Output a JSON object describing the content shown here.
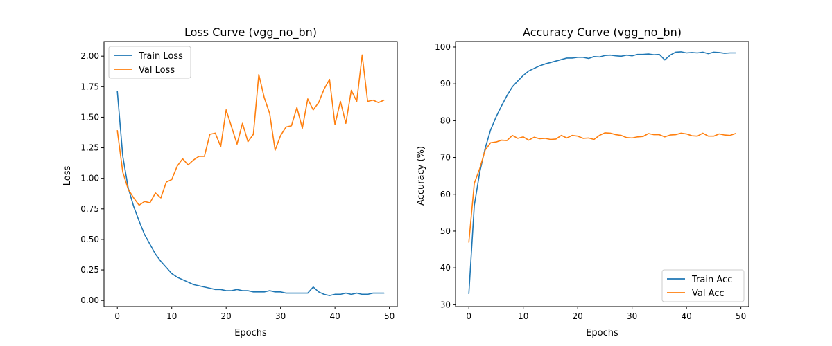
{
  "chart_data": [
    {
      "type": "line",
      "title": "Loss Curve (vgg_no_bn)",
      "xlabel": "Epochs",
      "ylabel": "Loss",
      "xlim": [
        -2.45,
        51.45
      ],
      "ylim": [
        -0.05,
        2.12
      ],
      "xticks": [
        0,
        10,
        20,
        30,
        40,
        50
      ],
      "yticks": [
        0.0,
        0.25,
        0.5,
        0.75,
        1.0,
        1.25,
        1.5,
        1.75,
        2.0
      ],
      "xtick_labels": [
        "0",
        "10",
        "20",
        "30",
        "40",
        "50"
      ],
      "ytick_labels": [
        "0.00",
        "0.25",
        "0.50",
        "0.75",
        "1.00",
        "1.25",
        "1.50",
        "1.75",
        "2.00"
      ],
      "legend_position": "upper-left",
      "x": [
        0,
        1,
        2,
        3,
        4,
        5,
        6,
        7,
        8,
        9,
        10,
        11,
        12,
        13,
        14,
        15,
        16,
        17,
        18,
        19,
        20,
        21,
        22,
        23,
        24,
        25,
        26,
        27,
        28,
        29,
        30,
        31,
        32,
        33,
        34,
        35,
        36,
        37,
        38,
        39,
        40,
        41,
        42,
        43,
        44,
        45,
        46,
        47,
        48,
        49
      ],
      "series": [
        {
          "name": "Train Loss",
          "color": "#1f77b4",
          "values": [
            1.71,
            1.18,
            0.92,
            0.77,
            0.65,
            0.54,
            0.46,
            0.38,
            0.32,
            0.27,
            0.22,
            0.19,
            0.17,
            0.15,
            0.13,
            0.12,
            0.11,
            0.1,
            0.09,
            0.09,
            0.08,
            0.08,
            0.09,
            0.08,
            0.08,
            0.07,
            0.07,
            0.07,
            0.08,
            0.07,
            0.07,
            0.06,
            0.06,
            0.06,
            0.06,
            0.06,
            0.11,
            0.07,
            0.05,
            0.04,
            0.05,
            0.05,
            0.06,
            0.05,
            0.06,
            0.05,
            0.05,
            0.06,
            0.06,
            0.06
          ]
        },
        {
          "name": "Val Loss",
          "color": "#ff7f0e",
          "values": [
            1.39,
            1.05,
            0.91,
            0.84,
            0.78,
            0.81,
            0.8,
            0.88,
            0.84,
            0.97,
            0.99,
            1.1,
            1.16,
            1.11,
            1.15,
            1.18,
            1.18,
            1.36,
            1.37,
            1.26,
            1.56,
            1.42,
            1.28,
            1.45,
            1.3,
            1.36,
            1.85,
            1.66,
            1.53,
            1.23,
            1.35,
            1.42,
            1.43,
            1.58,
            1.41,
            1.65,
            1.56,
            1.62,
            1.73,
            1.81,
            1.44,
            1.63,
            1.45,
            1.72,
            1.63,
            2.01,
            1.63,
            1.64,
            1.62,
            1.64
          ]
        }
      ]
    },
    {
      "type": "line",
      "title": "Accuracy Curve (vgg_no_bn)",
      "xlabel": "Epochs",
      "ylabel": "Accuracy (%)",
      "xlim": [
        -2.45,
        51.45
      ],
      "ylim": [
        29.5,
        101.5
      ],
      "xticks": [
        0,
        10,
        20,
        30,
        40,
        50
      ],
      "yticks": [
        30,
        40,
        50,
        60,
        70,
        80,
        90,
        100
      ],
      "xtick_labels": [
        "0",
        "10",
        "20",
        "30",
        "40",
        "50"
      ],
      "ytick_labels": [
        "30",
        "40",
        "50",
        "60",
        "70",
        "80",
        "90",
        "100"
      ],
      "legend_position": "lower-right",
      "x": [
        0,
        1,
        2,
        3,
        4,
        5,
        6,
        7,
        8,
        9,
        10,
        11,
        12,
        13,
        14,
        15,
        16,
        17,
        18,
        19,
        20,
        21,
        22,
        23,
        24,
        25,
        26,
        27,
        28,
        29,
        30,
        31,
        32,
        33,
        34,
        35,
        36,
        37,
        38,
        39,
        40,
        41,
        42,
        43,
        44,
        45,
        46,
        47,
        48,
        49
      ],
      "series": [
        {
          "name": "Train Acc",
          "color": "#1f77b4",
          "values": [
            33.0,
            57.0,
            66.0,
            72.5,
            77.5,
            81.0,
            84.0,
            86.8,
            89.2,
            90.8,
            92.3,
            93.5,
            94.2,
            94.9,
            95.4,
            95.8,
            96.2,
            96.6,
            97.0,
            97.0,
            97.2,
            97.2,
            96.9,
            97.4,
            97.3,
            97.7,
            97.8,
            97.6,
            97.5,
            97.8,
            97.6,
            98.0,
            98.0,
            98.1,
            97.9,
            98.0,
            96.5,
            97.8,
            98.6,
            98.7,
            98.4,
            98.5,
            98.4,
            98.6,
            98.2,
            98.6,
            98.5,
            98.3,
            98.4,
            98.4
          ]
        },
        {
          "name": "Val Acc",
          "color": "#ff7f0e",
          "values": [
            47.0,
            63.0,
            67.0,
            72.0,
            74.0,
            74.2,
            74.7,
            74.6,
            76.0,
            75.2,
            75.6,
            74.7,
            75.5,
            75.1,
            75.2,
            74.9,
            75.0,
            76.0,
            75.3,
            76.0,
            75.8,
            75.2,
            75.3,
            74.9,
            76.0,
            76.7,
            76.6,
            76.2,
            76.0,
            75.4,
            75.3,
            75.6,
            75.7,
            76.5,
            76.2,
            76.2,
            75.6,
            76.1,
            76.2,
            76.6,
            76.4,
            75.9,
            75.8,
            76.6,
            75.8,
            75.8,
            76.4,
            76.1,
            76.0,
            76.5
          ]
        }
      ]
    }
  ]
}
